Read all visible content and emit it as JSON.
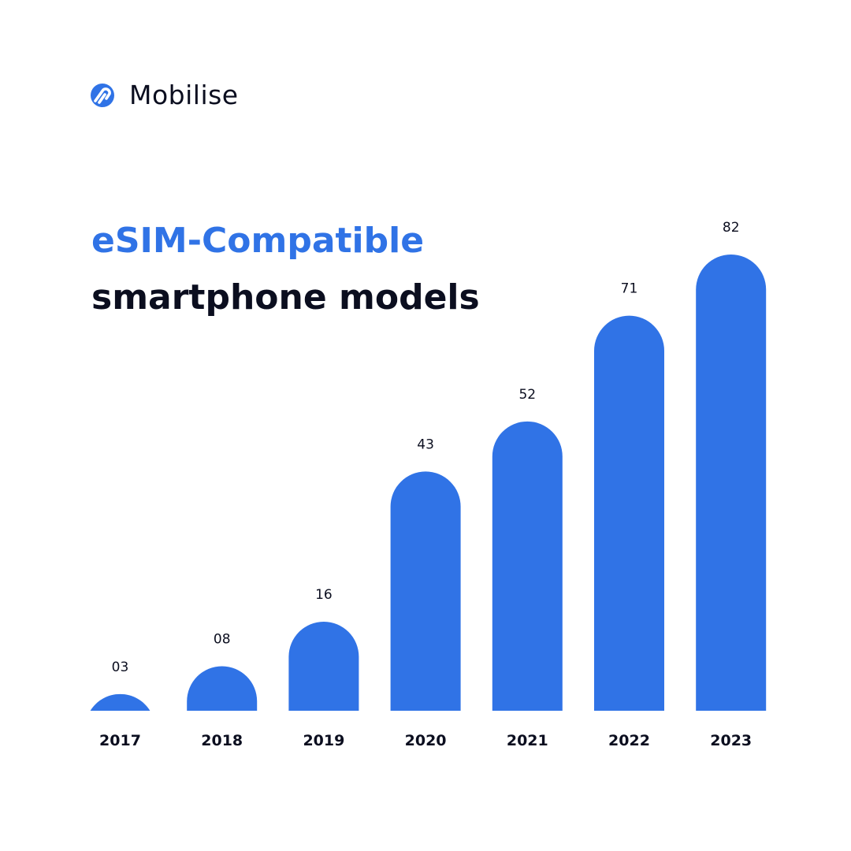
{
  "brand": {
    "name": "Mobilise",
    "logo_icon": "mobilise-logo-icon",
    "color": "#3073e6"
  },
  "title": {
    "accent": "eSIM-Compatible",
    "main": "smartphone models"
  },
  "colors": {
    "bar": "#3073e6",
    "accent": "#3073e6",
    "text": "#0b0e1f",
    "background": "#ffffff"
  },
  "chart_data": {
    "type": "bar",
    "title": "eSIM-Compatible smartphone models",
    "categories": [
      "2017",
      "2018",
      "2019",
      "2020",
      "2021",
      "2022",
      "2023"
    ],
    "values": [
      3,
      8,
      16,
      43,
      52,
      71,
      82
    ],
    "value_labels": [
      "03",
      "08",
      "16",
      "43",
      "52",
      "71",
      "82"
    ],
    "xlabel": "",
    "ylabel": "",
    "ylim": [
      0,
      82
    ],
    "grid": false,
    "legend": "none"
  }
}
